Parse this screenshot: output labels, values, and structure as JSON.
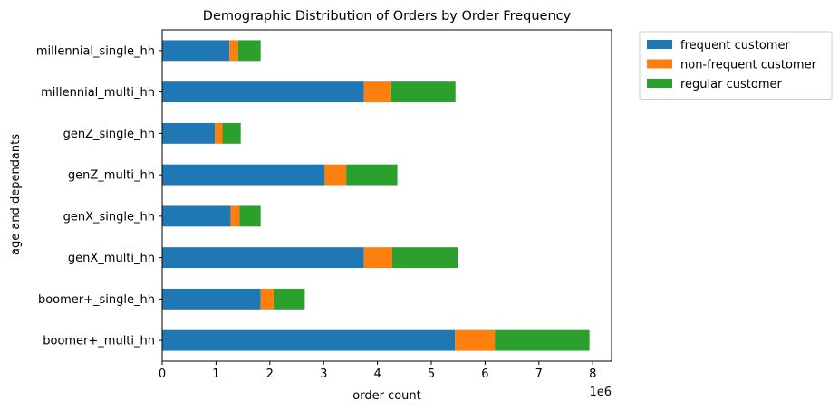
{
  "chart_data": {
    "type": "bar",
    "orientation": "horizontal",
    "stacked": true,
    "title": "Demographic Distribution of Orders by Order Frequency",
    "xlabel": "order count",
    "ylabel": "age and dependants",
    "x_multiplier_label": "1e6",
    "xlim": [
      0,
      8.35
    ],
    "x_ticks": [
      0,
      1,
      2,
      3,
      4,
      5,
      6,
      7,
      8
    ],
    "categories": [
      "boomer+_multi_hh",
      "boomer+_single_hh",
      "genX_multi_hh",
      "genX_single_hh",
      "genZ_multi_hh",
      "genZ_single_hh",
      "millennial_multi_hh",
      "millennial_single_hh"
    ],
    "series": [
      {
        "name": "frequent customer",
        "color": "#1f77b4",
        "values": [
          5.44,
          1.83,
          3.75,
          1.27,
          3.02,
          0.98,
          3.75,
          1.25
        ]
      },
      {
        "name": "non-frequent customer",
        "color": "#ff7f0e",
        "values": [
          0.74,
          0.24,
          0.52,
          0.17,
          0.4,
          0.14,
          0.49,
          0.16
        ]
      },
      {
        "name": "regular customer",
        "color": "#2ca02c",
        "values": [
          1.76,
          0.58,
          1.22,
          0.39,
          0.95,
          0.34,
          1.21,
          0.42
        ]
      }
    ],
    "legend_position": "outside-top-right",
    "grid": false
  }
}
